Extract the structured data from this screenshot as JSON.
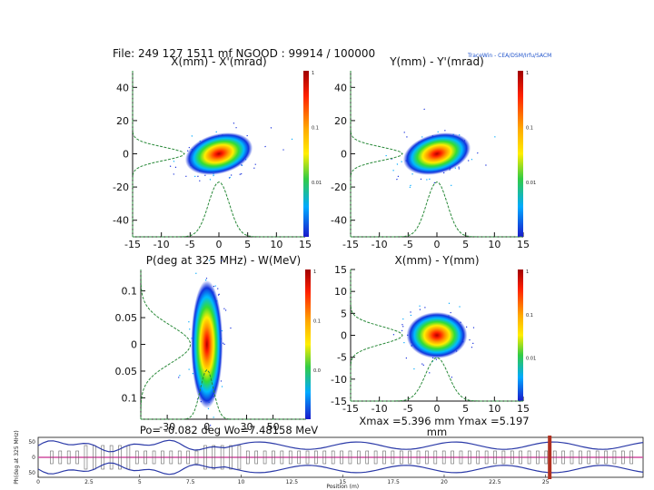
{
  "header": {
    "file_line": "File: 249 127 1511 mf  NGOOD : 99914 / 100000",
    "tag": "TraceWin - CEA/DSM/Irfu/SACM"
  },
  "colors": {
    "accent_green": "#2a8a3a",
    "beam_line_blue": "#2b3aa8",
    "beam_line_pink": "#d04fa0",
    "marker_red": "#b03020"
  },
  "chart_data": [
    {
      "id": "p1",
      "type": "heatmap",
      "title": "X(mm) - X'(mrad)",
      "xlim": [
        -15,
        15
      ],
      "ylim": [
        -50,
        50
      ],
      "xticks": [
        -15,
        -10,
        -5,
        0,
        5,
        10,
        15
      ],
      "yticks": [
        -40,
        -20,
        0,
        20,
        40
      ],
      "ytick_labels": [
        "-40",
        "-20",
        "0",
        "20",
        "40"
      ],
      "blob": {
        "cx": 0,
        "cy": 0,
        "sx": 2.5,
        "sy": 5,
        "tilt": -15
      },
      "colorbar": {
        "labels": [
          "1",
          "0.1",
          "0.01"
        ]
      },
      "x_profile_sigma": 1.8,
      "y_profile_sigma": 4
    },
    {
      "id": "p2",
      "type": "heatmap",
      "title": "Y(mm) - Y'(mrad)",
      "xlim": [
        -15,
        15
      ],
      "ylim": [
        -50,
        50
      ],
      "xticks": [
        -15,
        -10,
        -5,
        0,
        5,
        10,
        15
      ],
      "yticks": [
        -40,
        -20,
        0,
        20,
        40
      ],
      "ytick_labels": [
        "-40",
        "-20",
        "0",
        "20",
        "40"
      ],
      "blob": {
        "cx": 0,
        "cy": 0,
        "sx": 2.5,
        "sy": 5,
        "tilt": -15
      },
      "colorbar": {
        "labels": [
          "1",
          "0.1",
          "0.01"
        ]
      },
      "x_profile_sigma": 1.8,
      "y_profile_sigma": 4
    },
    {
      "id": "p3",
      "type": "heatmap",
      "title": "P(deg at 325 MHz) - W(MeV)",
      "xlim": [
        -50,
        75
      ],
      "ylim": [
        -0.14,
        0.14
      ],
      "xticks": [
        -30,
        0,
        30,
        50
      ],
      "xtick_labels": [
        "-30",
        "0",
        "30",
        "50"
      ],
      "yticks": [
        -0.1,
        -0.05,
        0,
        0.05,
        0.1
      ],
      "ytick_labels": [
        "0.1",
        "0.05",
        "0",
        "0.05",
        "0.1"
      ],
      "blob": {
        "cx": 0,
        "cy": 0,
        "sx": 5,
        "sy": 0.05,
        "tilt": 0
      },
      "colorbar": {
        "labels": [
          "1",
          "0.1",
          "0.0"
        ]
      },
      "x_profile_sigma": 5,
      "y_profile_sigma": 0.035,
      "footer": "Po= -0.082 deg  Wo=7.48158 MeV"
    },
    {
      "id": "p4",
      "type": "heatmap",
      "title": "X(mm) - Y(mm)",
      "xlim": [
        -15,
        15
      ],
      "ylim": [
        -15,
        15
      ],
      "xticks": [
        -15,
        -10,
        -5,
        0,
        5,
        10,
        15
      ],
      "yticks": [
        -15,
        -10,
        -5,
        0,
        5,
        10,
        15
      ],
      "ytick_labels": [
        "-15",
        "-10",
        "-5",
        "0",
        "5",
        "10",
        "15"
      ],
      "blob": {
        "cx": 0,
        "cy": 0,
        "sx": 2.2,
        "sy": 2.2,
        "tilt": 0
      },
      "colorbar": {
        "labels": [
          "1",
          "0.1",
          "0.01"
        ]
      },
      "x_profile_sigma": 2,
      "y_profile_sigma": 2,
      "footer": "Xmax =5.396 mm  Ymax =5.197",
      "footer2": "mm"
    },
    {
      "id": "beamline",
      "type": "line",
      "ylabel": "Ph(deg at 325 MHz)",
      "xlabel": "Position (m)",
      "xlim": [
        0,
        29.8
      ],
      "ylim": [
        -65,
        65
      ],
      "xticks": [
        0,
        5,
        10,
        15,
        20,
        25
      ],
      "xtick_labels": [
        "0",
        "5",
        "10",
        "15",
        "20",
        "25"
      ],
      "minor_labels": [
        "2.5",
        "7.5",
        "12.5",
        "17.5",
        "22.5"
      ],
      "yticks": [
        -50,
        0,
        50
      ],
      "ytick_labels": [
        "50",
        "0",
        "50"
      ],
      "marker_x": 25.2
    }
  ]
}
